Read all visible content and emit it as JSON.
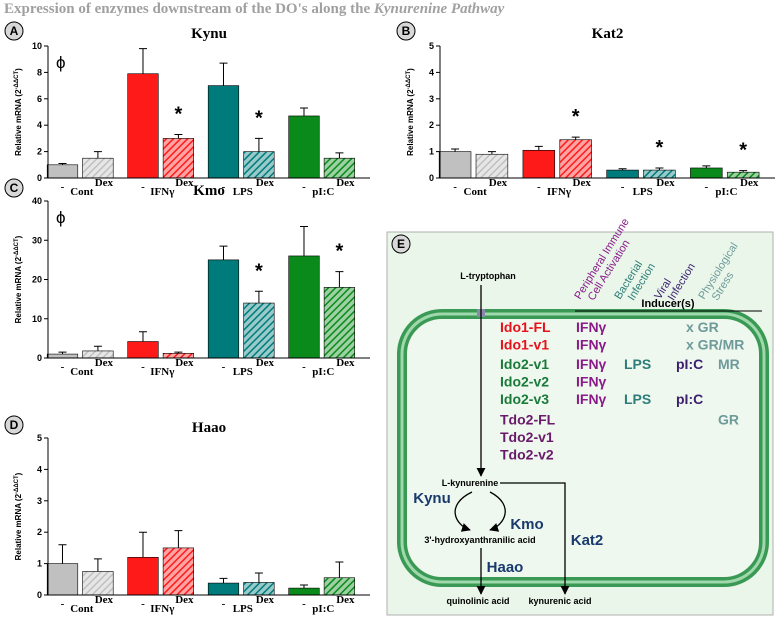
{
  "title": "Expression of enzymes downstream of the DO's along the ",
  "title_italic": "Kynurenine Pathway",
  "chart_data": [
    {
      "type": "bar",
      "panel": "A",
      "title": "Kynu",
      "ylabel": "Relative mRNA (2",
      "ylabel_sup": "-ΔΔCT",
      "ylabel_end": ")",
      "phi": "ϕ",
      "groups": [
        "Cont",
        "IFNγ",
        "LPS",
        "pI:C"
      ],
      "categories": [
        "-",
        "Dex",
        "-",
        "Dex",
        "-",
        "Dex",
        "-",
        "Dex"
      ],
      "values": [
        1.0,
        1.5,
        7.9,
        3.0,
        7.0,
        2.0,
        4.7,
        1.5
      ],
      "errors": [
        0.1,
        0.5,
        1.9,
        0.3,
        1.7,
        1.0,
        0.6,
        0.4
      ],
      "colors": [
        "#c0c0c0",
        "#ff1a1a",
        "#007b7b",
        "#0a8a1a"
      ],
      "hatched": [
        false,
        true,
        false,
        true,
        false,
        true,
        false,
        true
      ],
      "annotations": [
        null,
        null,
        null,
        "*",
        null,
        "*",
        null,
        null
      ],
      "ylim": [
        0,
        10
      ],
      "yticks": [
        0,
        2,
        4,
        6,
        8,
        10
      ]
    },
    {
      "type": "bar",
      "panel": "B",
      "title": "Kat2",
      "ylabel": "Relative mRNA (2",
      "ylabel_sup": "-ΔΔCT",
      "ylabel_end": ")",
      "groups": [
        "Cont",
        "IFNγ",
        "LPS",
        "pI:C"
      ],
      "categories": [
        "-",
        "Dex",
        "-",
        "Dex",
        "-",
        "Dex",
        "-",
        "Dex"
      ],
      "values": [
        1.0,
        0.9,
        1.05,
        1.45,
        0.3,
        0.3,
        0.38,
        0.22
      ],
      "errors": [
        0.1,
        0.1,
        0.15,
        0.1,
        0.05,
        0.08,
        0.08,
        0.06
      ],
      "colors": [
        "#c0c0c0",
        "#ff1a1a",
        "#007b7b",
        "#0a8a1a"
      ],
      "hatched": [
        false,
        true,
        false,
        true,
        false,
        true,
        false,
        true
      ],
      "annotations": [
        null,
        null,
        null,
        "*",
        null,
        "*",
        null,
        "*"
      ],
      "ylim": [
        0,
        5
      ],
      "yticks": [
        0,
        1,
        2,
        3,
        4,
        5
      ]
    },
    {
      "type": "bar",
      "panel": "C",
      "title": "Kmo",
      "ylabel": "Relative mRNA (2",
      "ylabel_sup": "-ΔΔCT",
      "ylabel_end": ")",
      "phi": "ϕ",
      "groups": [
        "Cont",
        "IFNγ",
        "LPS",
        "pI:C"
      ],
      "categories": [
        "-",
        "Dex",
        "-",
        "Dex",
        "-",
        "Dex",
        "-",
        "Dex"
      ],
      "values": [
        1.0,
        1.8,
        4.2,
        1.2,
        25,
        14,
        26,
        18
      ],
      "errors": [
        0.5,
        1.2,
        2.5,
        0.3,
        3.5,
        3,
        7.5,
        4
      ],
      "colors": [
        "#c0c0c0",
        "#ff1a1a",
        "#007b7b",
        "#0a8a1a"
      ],
      "hatched": [
        false,
        true,
        false,
        true,
        false,
        true,
        false,
        true
      ],
      "annotations": [
        null,
        null,
        null,
        null,
        null,
        "*",
        null,
        "*"
      ],
      "ylim": [
        0,
        40
      ],
      "yticks": [
        0,
        10,
        20,
        30,
        40
      ]
    },
    {
      "type": "bar",
      "panel": "D",
      "title": "Haao",
      "ylabel": "Relative mRNA (2",
      "ylabel_sup": "-ΔΔCT",
      "ylabel_end": ")",
      "groups": [
        "Cont",
        "IFNγ",
        "LPS",
        "pI:C"
      ],
      "categories": [
        "-",
        "Dex",
        "-",
        "Dex",
        "-",
        "Dex",
        "-",
        "Dex"
      ],
      "values": [
        1.0,
        0.75,
        1.2,
        1.5,
        0.38,
        0.4,
        0.22,
        0.55
      ],
      "errors": [
        0.6,
        0.4,
        0.8,
        0.55,
        0.15,
        0.3,
        0.1,
        0.5
      ],
      "colors": [
        "#c0c0c0",
        "#ff1a1a",
        "#007b7b",
        "#0a8a1a"
      ],
      "hatched": [
        false,
        true,
        false,
        true,
        false,
        true,
        false,
        true
      ],
      "annotations": [
        null,
        null,
        null,
        null,
        null,
        null,
        null,
        null
      ],
      "ylim": [
        0,
        5
      ],
      "yticks": [
        0,
        1,
        2,
        3,
        4,
        5
      ]
    }
  ],
  "diagram": {
    "panel": "E",
    "columns": [
      {
        "line1": "Peripheral Immune",
        "line2": "Cell Activation",
        "color": "#8a1a8a"
      },
      {
        "line1": "Bacterial",
        "line2": "Infection",
        "color": "#2e7d7a"
      },
      {
        "line1": "Viral",
        "line2": "Infection",
        "color": "#3b1f6e"
      },
      {
        "line1": "Physiological",
        "line2": "Stress",
        "color": "#6e9a9a"
      }
    ],
    "inducer_header": "Inducer(s)",
    "rows": [
      {
        "gene": "Ido1-FL",
        "color": "#e8101a",
        "inducers": [
          "IFNγ",
          null,
          null,
          "x GR"
        ]
      },
      {
        "gene": "Ido1-v1",
        "color": "#e8101a",
        "inducers": [
          "IFNγ",
          null,
          null,
          "x GR/MR"
        ]
      },
      {
        "gene": "Ido2-v1",
        "color": "#1a7a3a",
        "inducers": [
          "IFNγ",
          "LPS",
          "pI:C",
          "MR"
        ]
      },
      {
        "gene": "Ido2-v2",
        "color": "#1a7a3a",
        "inducers": [
          "IFNγ",
          null,
          null,
          null
        ]
      },
      {
        "gene": "Ido2-v3",
        "color": "#1a7a3a",
        "inducers": [
          "IFNγ",
          "LPS",
          "pI:C",
          null
        ]
      },
      {
        "gene": "Tdo2-FL",
        "color": "#6a1a6a",
        "inducers": [
          null,
          null,
          null,
          "GR"
        ]
      },
      {
        "gene": "Tdo2-v1",
        "color": "#6a1a6a",
        "inducers": [
          null,
          null,
          null,
          null
        ]
      },
      {
        "gene": "Tdo2-v2",
        "color": "#6a1a6a",
        "inducers": [
          null,
          null,
          null,
          null
        ]
      }
    ],
    "tryptophan": "L-tryptophan",
    "kynurenine": "L-kynurenine",
    "kynu": "Kynu",
    "kmo": "Kmo",
    "hydroxy": "3'-hydroxyanthranilic acid",
    "haao": "Haao",
    "quinolinic": "quinolinic acid",
    "kat2": "Kat2",
    "kynurenic": "kynurenic acid"
  }
}
